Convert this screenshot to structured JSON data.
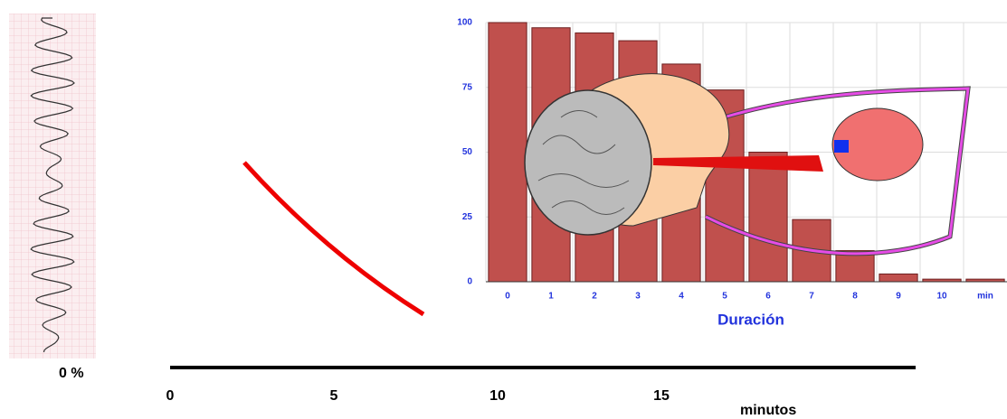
{
  "chart_data": {
    "type": "bar",
    "xlabel": "Duración",
    "categories": [
      "0",
      "1",
      "2",
      "3",
      "4",
      "5",
      "6",
      "7",
      "8",
      "9",
      "10",
      "min"
    ],
    "values": [
      100,
      98,
      96,
      93,
      84,
      74,
      50,
      24,
      12,
      3,
      1,
      1
    ],
    "color": "#c0504d",
    "ylim": [
      0,
      100
    ],
    "yticks": [
      0,
      25,
      50,
      75,
      100
    ],
    "grid": true
  },
  "slide": {
    "percent_label": "0 %",
    "timeline": {
      "ticks": [
        0,
        5,
        10,
        15
      ],
      "label": "minutos"
    }
  }
}
